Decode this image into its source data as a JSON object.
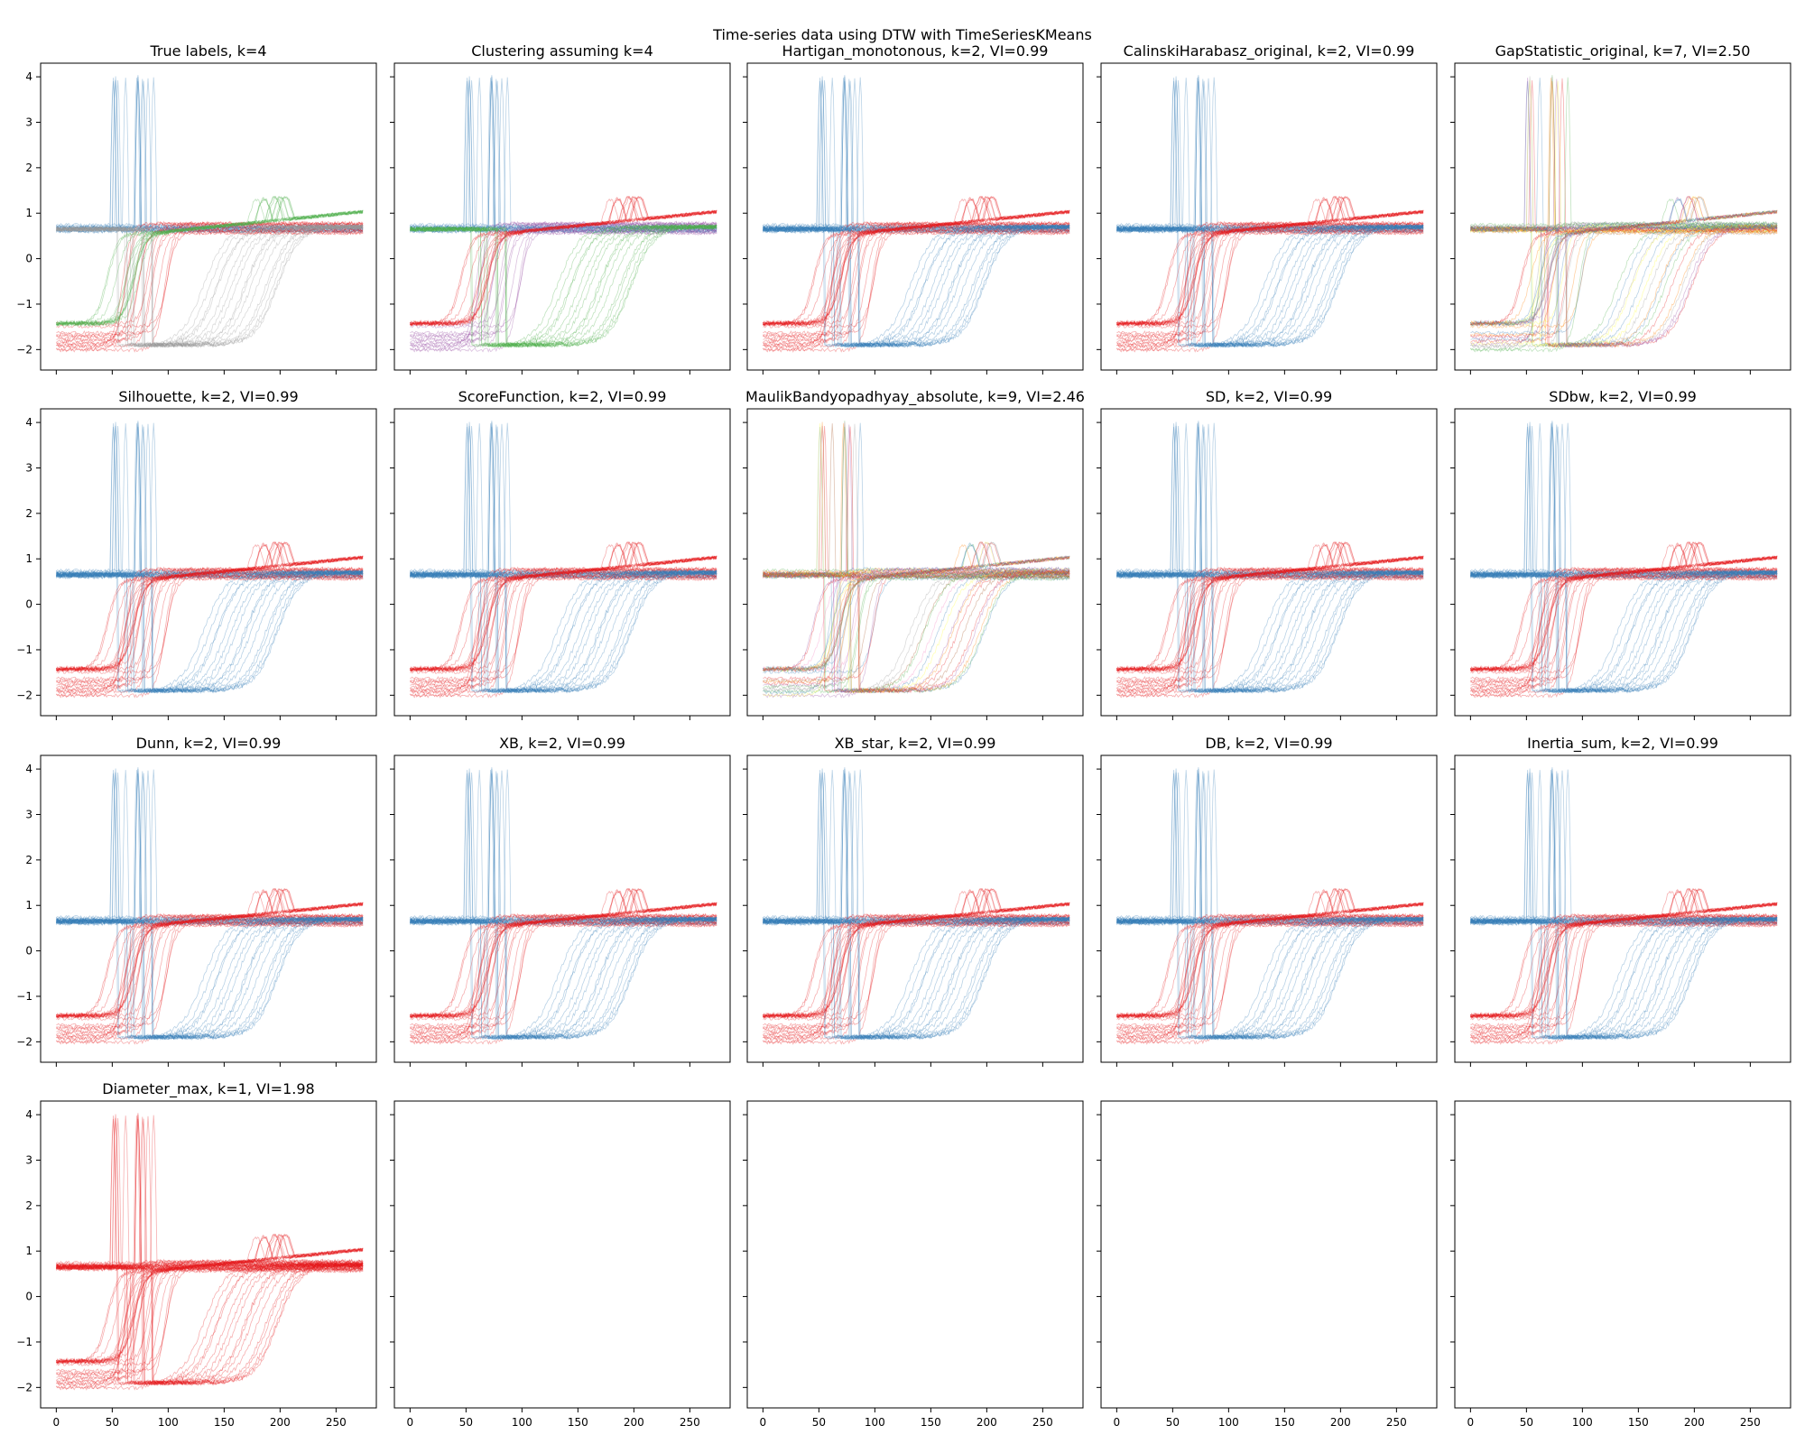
{
  "figure": {
    "suptitle": "Time-series data using DTW with TimeSeriesKMeans",
    "colors": {
      "blue": "#377eb8",
      "red": "#e41a1c",
      "green": "#4daf4a",
      "purple": "#984ea3",
      "orange": "#ff7f00",
      "yellow": "#ffff33",
      "gray": "#999999",
      "pink": "#f781bf",
      "brown": "#a65628"
    }
  },
  "chart_data": [
    {
      "type": "line",
      "title": "True labels, k=4",
      "k": 4,
      "palette": [
        "blue",
        "red",
        "gray",
        "green"
      ]
    },
    {
      "type": "line",
      "title": "Clustering assuming k=4",
      "k": 4,
      "palette": [
        "blue",
        "purple",
        "green",
        "red"
      ]
    },
    {
      "type": "line",
      "title": "Hartigan_monotonous, k=2, VI=0.99",
      "k": 2,
      "VI": 0.99,
      "palette": [
        "blue",
        "red"
      ]
    },
    {
      "type": "line",
      "title": "CalinskiHarabasz_original, k=2, VI=0.99",
      "k": 2,
      "VI": 0.99,
      "palette": [
        "blue",
        "red"
      ]
    },
    {
      "type": "line",
      "title": "GapStatistic_original, k=7, VI=2.50",
      "k": 7,
      "VI": 2.5,
      "palette": [
        "blue",
        "red",
        "green",
        "yellow",
        "orange",
        "purple",
        "gray"
      ]
    },
    {
      "type": "line",
      "title": "Silhouette, k=2, VI=0.99",
      "k": 2,
      "VI": 0.99,
      "palette": [
        "blue",
        "red"
      ]
    },
    {
      "type": "line",
      "title": "ScoreFunction, k=2, VI=0.99",
      "k": 2,
      "VI": 0.99,
      "palette": [
        "blue",
        "red"
      ]
    },
    {
      "type": "line",
      "title": "MaulikBandyopadhyay_absolute, k=9, VI=2.46",
      "k": 9,
      "VI": 2.46,
      "palette": [
        "blue",
        "red",
        "green",
        "purple",
        "orange",
        "yellow",
        "pink",
        "brown",
        "gray"
      ]
    },
    {
      "type": "line",
      "title": "SD, k=2, VI=0.99",
      "k": 2,
      "VI": 0.99,
      "palette": [
        "blue",
        "red"
      ]
    },
    {
      "type": "line",
      "title": "SDbw, k=2, VI=0.99",
      "k": 2,
      "VI": 0.99,
      "palette": [
        "blue",
        "red"
      ]
    },
    {
      "type": "line",
      "title": "Dunn, k=2, VI=0.99",
      "k": 2,
      "VI": 0.99,
      "palette": [
        "blue",
        "red"
      ]
    },
    {
      "type": "line",
      "title": "XB, k=2, VI=0.99",
      "k": 2,
      "VI": 0.99,
      "palette": [
        "blue",
        "red"
      ]
    },
    {
      "type": "line",
      "title": "XB_star, k=2, VI=0.99",
      "k": 2,
      "VI": 0.99,
      "palette": [
        "blue",
        "red"
      ]
    },
    {
      "type": "line",
      "title": "DB, k=2, VI=0.99",
      "k": 2,
      "VI": 0.99,
      "palette": [
        "blue",
        "red"
      ]
    },
    {
      "type": "line",
      "title": "Inertia_sum, k=2, VI=0.99",
      "k": 2,
      "VI": 0.99,
      "palette": [
        "blue",
        "red"
      ]
    },
    {
      "type": "line",
      "title": "Diameter_max, k=1, VI=1.98",
      "k": 1,
      "VI": 1.98,
      "palette": [
        "red"
      ]
    },
    {
      "type": "line",
      "title": "",
      "empty": true
    },
    {
      "type": "line",
      "title": "",
      "empty": true
    },
    {
      "type": "line",
      "title": "",
      "empty": true
    },
    {
      "type": "line",
      "title": "",
      "empty": true
    }
  ],
  "axes": {
    "xlim": [
      -14,
      286
    ],
    "ylim": [
      -2.45,
      4.3
    ],
    "xticks": [
      0,
      50,
      100,
      150,
      200,
      250
    ],
    "yticks": [
      -2,
      -1,
      0,
      1,
      2,
      3,
      4
    ],
    "shared_x": true,
    "shared_y": true,
    "series_length": 275
  }
}
